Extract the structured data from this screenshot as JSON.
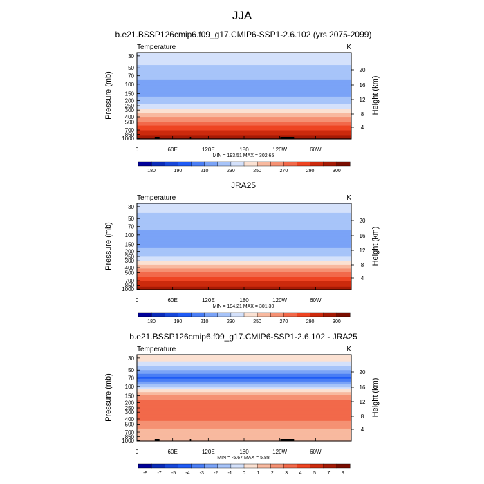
{
  "page_title": "JJA",
  "chart_data": [
    {
      "type": "heatmap",
      "title": "b.e21.BSSP126cmip6.f09_g17.CMIP6-SSP1-2.6.102 (yrs 2075-2099)",
      "variable_label": "Temperature",
      "units_label": "K",
      "xlabel": "",
      "ylabel": "Pressure (mb)",
      "ylabel_right": "Height (km)",
      "x_ticks": [
        "0",
        "60E",
        "120E",
        "180",
        "120W",
        "60W"
      ],
      "y_ticks": [
        "30",
        "50",
        "70",
        "100",
        "150",
        "200",
        "250",
        "300",
        "400",
        "500",
        "700",
        "850",
        "1000"
      ],
      "height_ticks": [
        "20",
        "16",
        "12",
        "8",
        "4"
      ],
      "stats_text": "MIN = 193.51  MAX = 302.65",
      "min": 193.51,
      "max": 302.65,
      "colorbar_labels": [
        "180",
        "190",
        "210",
        "230",
        "250",
        "270",
        "290",
        "300"
      ],
      "color_levels": [
        175,
        180,
        185,
        190,
        200,
        210,
        220,
        230,
        240,
        250,
        260,
        270,
        280,
        290,
        295,
        300
      ],
      "colors": [
        "#000099",
        "#0a2bb8",
        "#1747d9",
        "#1f5bf5",
        "#4a7ef5",
        "#7aa3f7",
        "#a7c4f9",
        "#d4e1fb",
        "#fbe1d2",
        "#f8b99f",
        "#f59173",
        "#f2694a",
        "#ee4422",
        "#cc2a0d",
        "#a51a05",
        "#7a0d00"
      ],
      "profile_levels_mb": [
        30,
        50,
        70,
        100,
        150,
        200,
        250,
        300,
        400,
        500,
        700,
        850,
        1000
      ],
      "profile_values": [
        226,
        218,
        213,
        206,
        207,
        213,
        222,
        232,
        250,
        262,
        280,
        288,
        296
      ],
      "surface_blocks": [
        [
          30,
          38
        ],
        [
          89,
          91
        ],
        [
          241,
          264
        ]
      ]
    },
    {
      "type": "heatmap",
      "title": "JRA25",
      "variable_label": "Temperature",
      "units_label": "K",
      "xlabel": "",
      "ylabel": "Pressure (mb)",
      "ylabel_right": "Height (km)",
      "x_ticks": [
        "0",
        "60E",
        "120E",
        "180",
        "120W",
        "60W"
      ],
      "y_ticks": [
        "30",
        "50",
        "70",
        "100",
        "150",
        "200",
        "250",
        "300",
        "400",
        "500",
        "700",
        "850",
        "1000"
      ],
      "height_ticks": [
        "20",
        "16",
        "12",
        "8",
        "4"
      ],
      "stats_text": "MIN = 194.21  MAX = 301.30",
      "min": 194.21,
      "max": 301.3,
      "colorbar_labels": [
        "180",
        "190",
        "210",
        "230",
        "250",
        "270",
        "290",
        "300"
      ],
      "color_levels": [
        175,
        180,
        185,
        190,
        200,
        210,
        220,
        230,
        240,
        250,
        260,
        270,
        280,
        290,
        295,
        300
      ],
      "colors": [
        "#000099",
        "#0a2bb8",
        "#1747d9",
        "#1f5bf5",
        "#4a7ef5",
        "#7aa3f7",
        "#a7c4f9",
        "#d4e1fb",
        "#fbe1d2",
        "#f8b99f",
        "#f59173",
        "#f2694a",
        "#ee4422",
        "#cc2a0d",
        "#a51a05",
        "#7a0d00"
      ],
      "profile_levels_mb": [
        30,
        50,
        70,
        100,
        150,
        200,
        250,
        300,
        400,
        500,
        700,
        850,
        1000
      ],
      "profile_values": [
        224,
        216,
        212,
        207,
        208,
        213,
        220,
        230,
        248,
        261,
        279,
        287,
        294
      ],
      "surface_blocks": []
    },
    {
      "type": "heatmap",
      "title": "b.e21.BSSP126cmip6.f09_g17.CMIP6-SSP1-2.6.102 - JRA25",
      "variable_label": "Temperature",
      "units_label": "K",
      "xlabel": "",
      "ylabel": "Pressure (mb)",
      "ylabel_right": "Height (km)",
      "x_ticks": [
        "0",
        "60E",
        "120E",
        "180",
        "120W",
        "60W"
      ],
      "y_ticks": [
        "30",
        "50",
        "70",
        "100",
        "150",
        "200",
        "250",
        "300",
        "400",
        "500",
        "700",
        "850",
        "1000"
      ],
      "height_ticks": [
        "20",
        "16",
        "12",
        "8",
        "4"
      ],
      "stats_text": "MIN =  -5.67  MAX =   5.88",
      "min": -5.67,
      "max": 5.88,
      "colorbar_labels": [
        "-9",
        "-7",
        "-5",
        "-4",
        "-3",
        "-2",
        "-1",
        "0",
        "1",
        "2",
        "3",
        "4",
        "5",
        "7",
        "9"
      ],
      "color_levels": [
        -9,
        -7,
        -5,
        -4,
        -3,
        -2,
        -1,
        0,
        1,
        2,
        3,
        4,
        5,
        7,
        9
      ],
      "colors": [
        "#000099",
        "#0a2bb8",
        "#1747d9",
        "#1f5bf5",
        "#4a7ef5",
        "#7aa3f7",
        "#a7c4f9",
        "#d4e1fb",
        "#fbe1d2",
        "#f8b99f",
        "#f59173",
        "#f2694a",
        "#ee4422",
        "#cc2a0d",
        "#a51a05",
        "#7a0d00"
      ],
      "profile_levels_mb": [
        30,
        40,
        50,
        60,
        70,
        80,
        100,
        150,
        200,
        250,
        300,
        400,
        500,
        700,
        850,
        1000
      ],
      "profile_values": [
        0.5,
        -0.5,
        -2.0,
        -3.0,
        -4.3,
        -3.0,
        -1.2,
        2.5,
        3.4,
        3.6,
        3.7,
        3.2,
        2.6,
        1.6,
        1.2,
        1.8
      ],
      "surface_blocks": [
        [
          30,
          38
        ],
        [
          89,
          91
        ],
        [
          241,
          264
        ]
      ]
    }
  ]
}
